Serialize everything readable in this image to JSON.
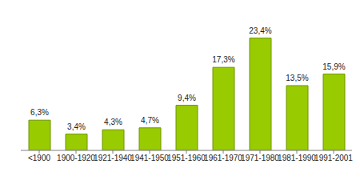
{
  "chart_data": {
    "type": "bar",
    "categories": [
      "<1900",
      "1900-1920",
      "1921-1940",
      "1941-1950",
      "1951-1960",
      "1961-1970",
      "1971-1980",
      "1981-1990",
      "1991-2001"
    ],
    "values": [
      6.3,
      3.4,
      4.3,
      4.7,
      9.4,
      17.3,
      23.4,
      13.5,
      15.9
    ],
    "value_labels": [
      "6,3%",
      "3,4%",
      "4,3%",
      "4,7%",
      "9,4%",
      "17,3%",
      "23,4%",
      "13,5%",
      "15,9%"
    ],
    "color": "#99cc00",
    "ylim": [
      0,
      25
    ],
    "grid": false,
    "data_labels": true,
    "tick_labels": "x"
  }
}
